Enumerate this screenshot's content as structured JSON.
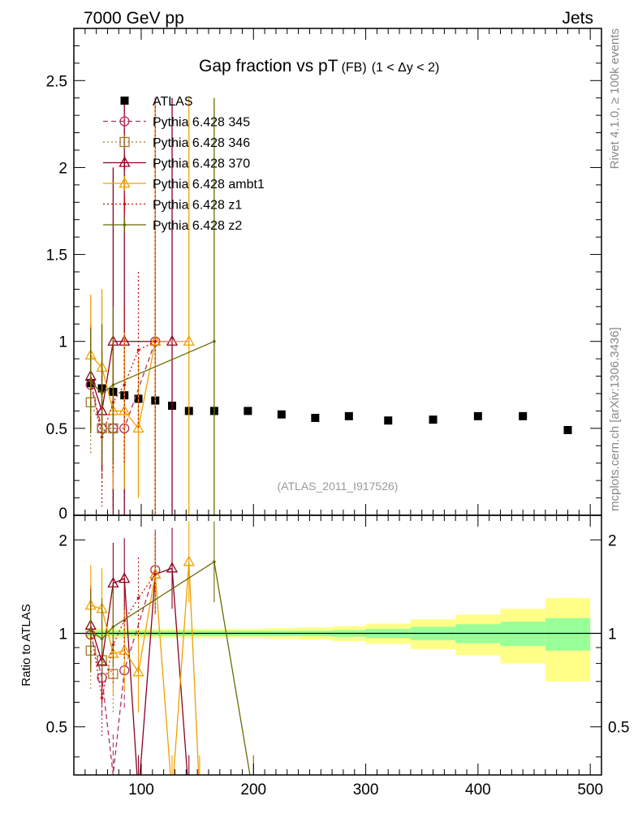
{
  "header": {
    "left": "7000 GeV pp",
    "right": "Jets",
    "side_top": "Rivet 4.1.0, ≥ 100k events",
    "side_bottom": "mcplots.cern.ch [arXiv:1306.3436]",
    "watermark": "(ATLAS_2011_I917526)"
  },
  "chart_data": [
    {
      "type": "scatter",
      "title": "Gap fraction vs pT",
      "title_sub": "(FB)",
      "title_range": "(1 < Δy < 2)",
      "xlabel": "",
      "ylabel": "",
      "xlim": [
        40,
        510
      ],
      "ylim": [
        0,
        2.8
      ],
      "yticks": [
        0.5,
        1,
        1.5,
        2,
        2.5
      ],
      "ytick_labels": [
        "0.5",
        "1",
        "1.5",
        "2",
        "2.5"
      ],
      "y_zero_label": "0",
      "legend_position": "top-left",
      "series": [
        {
          "name": "ATLAS",
          "color": "#000000",
          "marker": "square-filled",
          "x": [
            55,
            65,
            75,
            85,
            97.5,
            112.5,
            127.5,
            142.5,
            165,
            195,
            225,
            255,
            285,
            320,
            360,
            400,
            440,
            480
          ],
          "y": [
            0.76,
            0.73,
            0.71,
            0.69,
            0.67,
            0.66,
            0.63,
            0.6,
            0.6,
            0.6,
            0.58,
            0.56,
            0.57,
            0.545,
            0.55,
            0.57,
            0.57,
            0.49
          ]
        },
        {
          "name": "Pythia 6.428 345",
          "color": "#b03060",
          "marker": "circle-open",
          "line": "dashed",
          "x": [
            55,
            65,
            75,
            85,
            112.5
          ],
          "y": [
            0.75,
            0.5,
            0.5,
            0.5,
            1.0
          ],
          "err": [
            0.25,
            0.3,
            0.45,
            0.4,
            1.4
          ]
        },
        {
          "name": "Pythia 6.428 346",
          "color": "#a07830",
          "marker": "square-open",
          "line": "dotted",
          "x": [
            55,
            65,
            75
          ],
          "y": [
            0.65,
            0.5,
            0.5
          ],
          "err": [
            0.3,
            0.35,
            0.4
          ]
        },
        {
          "name": "Pythia 6.428 370",
          "color": "#8b0020",
          "marker": "triangle-open",
          "line": "solid",
          "x": [
            55,
            65,
            75,
            85,
            112.5,
            127.5
          ],
          "y": [
            0.8,
            0.6,
            1.0,
            1.0,
            1.0,
            1.0
          ],
          "err": [
            0.3,
            0.35,
            1.0,
            1.4,
            1.4,
            1.4
          ]
        },
        {
          "name": "Pythia 6.428 ambt1",
          "color": "#f0a000",
          "marker": "triangle-open",
          "line": "solid",
          "x": [
            55,
            65,
            75,
            85,
            97.5,
            112.5,
            142.5
          ],
          "y": [
            0.92,
            0.85,
            0.6,
            0.6,
            0.5,
            1.0,
            1.0
          ],
          "err": [
            0.35,
            0.45,
            0.45,
            0.45,
            0.4,
            1.4,
            1.4
          ]
        },
        {
          "name": "Pythia 6.428 z1",
          "color": "#cc1010",
          "marker": "dot",
          "line": "dotted",
          "x": [
            55,
            65,
            75,
            85,
            97.5,
            112.5
          ],
          "y": [
            0.78,
            0.45,
            0.65,
            0.75,
            0.95,
            1.0
          ],
          "err": [
            0.3,
            0.4,
            0.4,
            0.45,
            0.45,
            1.4
          ]
        },
        {
          "name": "Pythia 6.428 z2",
          "color": "#6b6b00",
          "marker": "dot",
          "line": "solid",
          "x": [
            55,
            65,
            75,
            165
          ],
          "y": [
            0.77,
            0.7,
            0.75,
            1.0
          ],
          "err": [
            0.3,
            0.4,
            0.45,
            1.4
          ]
        }
      ]
    },
    {
      "type": "line",
      "title": "",
      "xlabel": "",
      "ylabel": "Ratio to ATLAS",
      "xlim": [
        40,
        510
      ],
      "ylim": [
        0.35,
        2.4
      ],
      "y_scale": "log",
      "yticks": [
        0.5,
        1,
        2
      ],
      "ytick_labels": [
        "0.5",
        "1",
        "2"
      ],
      "xticks": [
        100,
        200,
        300,
        400,
        500
      ],
      "xtick_labels": [
        "100",
        "200",
        "300",
        "400",
        "500"
      ],
      "reference": 1,
      "band_edges": [
        50,
        60,
        70,
        80,
        90,
        105,
        120,
        135,
        150,
        180,
        210,
        240,
        270,
        300,
        340,
        380,
        420,
        460,
        500
      ],
      "band_inner": [
        0.02,
        0.02,
        0.02,
        0.02,
        0.02,
        0.02,
        0.02,
        0.02,
        0.02,
        0.02,
        0.02,
        0.02,
        0.025,
        0.035,
        0.05,
        0.07,
        0.09,
        0.12
      ],
      "band_outer": [
        0.035,
        0.035,
        0.035,
        0.035,
        0.035,
        0.035,
        0.035,
        0.035,
        0.035,
        0.035,
        0.04,
        0.045,
        0.055,
        0.075,
        0.11,
        0.15,
        0.2,
        0.3
      ],
      "band_colors": {
        "outer": "#ffff88",
        "inner": "#99ff99"
      },
      "series": [
        {
          "name": "Pythia 6.428 345",
          "color": "#b03060",
          "marker": "circle-open",
          "line": "dashed",
          "x": [
            55,
            65,
            75,
            85,
            112.5
          ],
          "y": [
            0.99,
            0.72,
            0.35,
            0.76,
            1.6
          ]
        },
        {
          "name": "Pythia 6.428 346",
          "color": "#a07830",
          "marker": "square-open",
          "line": "dotted",
          "x": [
            55,
            65,
            75
          ],
          "y": [
            0.88,
            0.82,
            0.74
          ]
        },
        {
          "name": "Pythia 6.428 370",
          "color": "#8b0020",
          "marker": "triangle-open",
          "line": "solid",
          "x": [
            55,
            65,
            75,
            85,
            97.5,
            112.5,
            127.5,
            142.5
          ],
          "y": [
            1.06,
            0.81,
            1.45,
            1.5,
            0.3,
            1.55,
            1.62,
            0.3
          ]
        },
        {
          "name": "Pythia 6.428 ambt1",
          "color": "#f0a000",
          "marker": "triangle-open",
          "line": "solid",
          "x": [
            55,
            65,
            75,
            85,
            97.5,
            112.5,
            127.5,
            142.5,
            152
          ],
          "y": [
            1.23,
            1.2,
            0.86,
            0.88,
            0.75,
            1.55,
            0.3,
            1.7,
            0.3
          ]
        },
        {
          "name": "Pythia 6.428 z1",
          "color": "#cc1010",
          "marker": "dot",
          "line": "dotted",
          "x": [
            55,
            65,
            75,
            85,
            97.5,
            112.5
          ],
          "y": [
            1.03,
            0.62,
            0.92,
            1.1,
            1.3,
            1.55
          ]
        },
        {
          "name": "Pythia 6.428 z2",
          "color": "#6b6b00",
          "marker": "dot",
          "line": "solid",
          "x": [
            55,
            65,
            75,
            165,
            200
          ],
          "y": [
            1.02,
            0.96,
            1.05,
            1.7,
            0.3
          ]
        }
      ]
    }
  ]
}
